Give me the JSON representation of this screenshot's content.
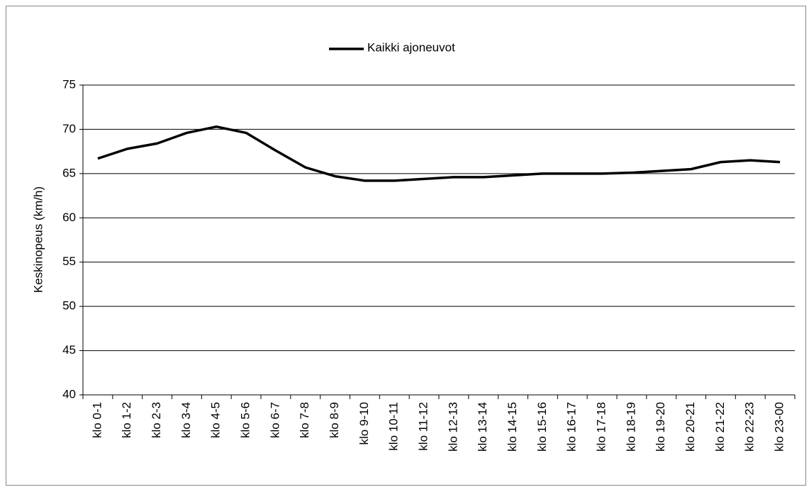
{
  "chart_data": {
    "type": "line",
    "legend": "top",
    "grid": true,
    "y_label": "Keskinopeus (km/h)",
    "categories": [
      "klo 0-1",
      "klo 1-2",
      "klo 2-3",
      "klo 3-4",
      "klo 4-5",
      "klo 5-6",
      "klo 6-7",
      "klo 7-8",
      "klo 8-9",
      "klo 9-10",
      "klo 10-11",
      "klo 11-12",
      "klo 12-13",
      "klo 13-14",
      "klo 14-15",
      "klo 15-16",
      "klo 16-17",
      "klo 17-18",
      "klo 18-19",
      "klo 19-20",
      "klo 20-21",
      "klo 21-22",
      "klo 22-23",
      "klo 23-00"
    ],
    "series": [
      {
        "name": "Kaikki ajoneuvot",
        "color": "#000000",
        "values": [
          66.7,
          67.8,
          68.4,
          69.6,
          70.3,
          69.6,
          67.6,
          65.7,
          64.7,
          64.2,
          64.2,
          64.4,
          64.6,
          64.6,
          64.8,
          65.0,
          65.0,
          65.0,
          65.1,
          65.3,
          65.5,
          66.3,
          66.5,
          66.3
        ]
      }
    ],
    "ylim": [
      40,
      75
    ],
    "yticks": [
      40,
      45,
      50,
      55,
      60,
      65,
      70,
      75
    ]
  }
}
